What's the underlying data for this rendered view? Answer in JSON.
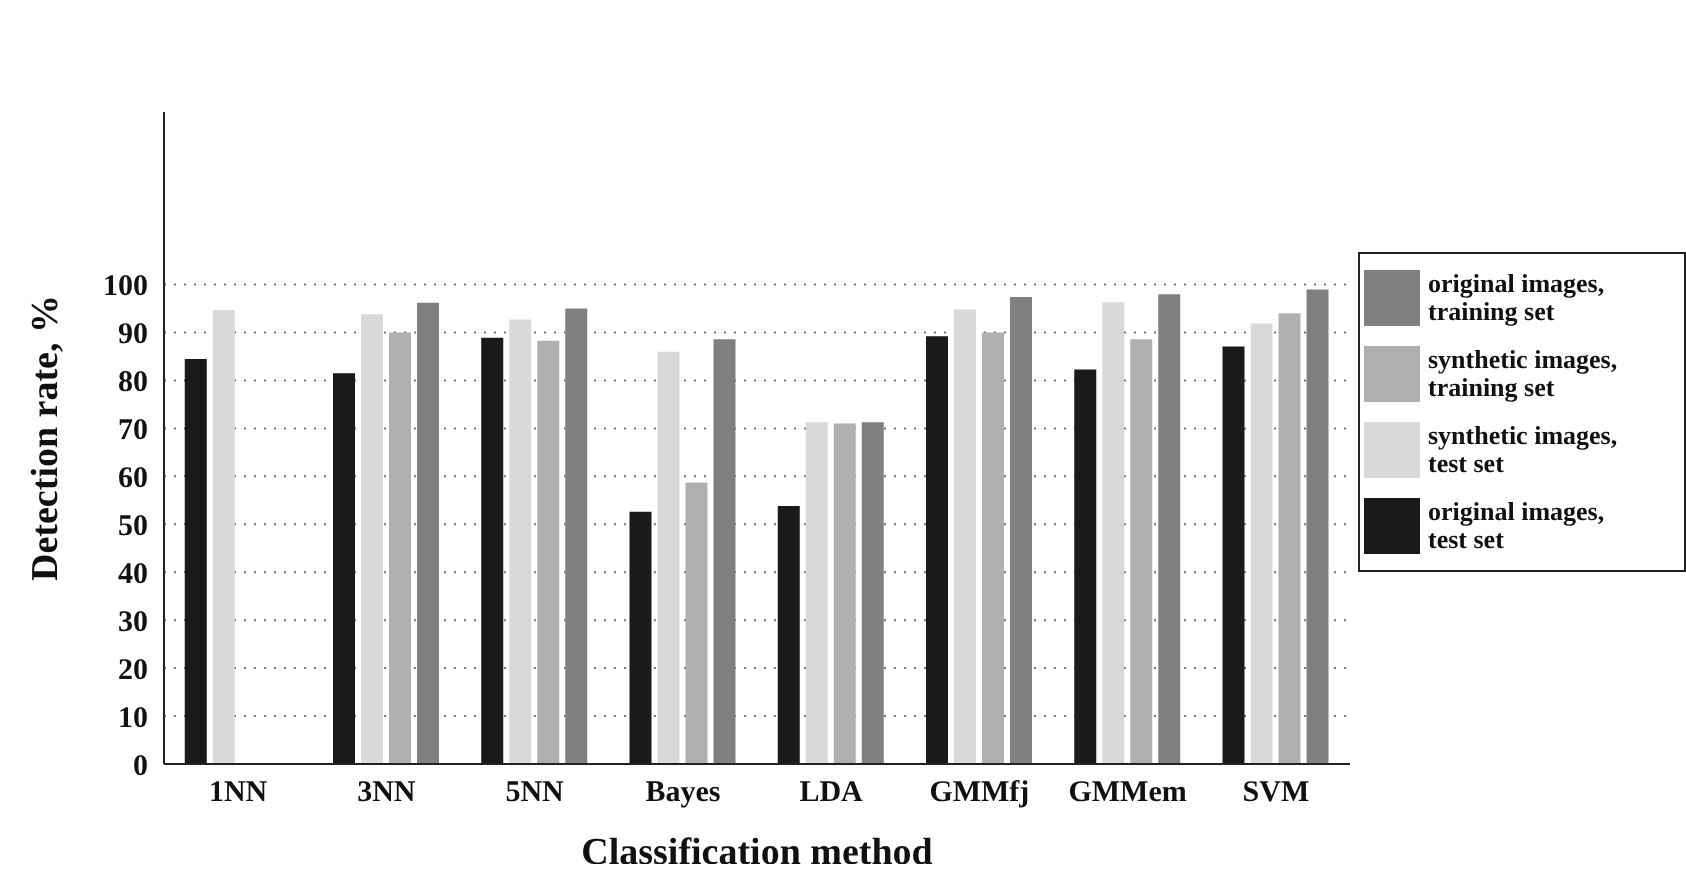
{
  "chart_data": {
    "type": "bar",
    "xlabel": "Classification method",
    "ylabel": "Detection rate, %",
    "categories": [
      "1NN",
      "3NN",
      "5NN",
      "Bayes",
      "LDA",
      "GMMfj",
      "GMMem",
      "SVM"
    ],
    "series": [
      {
        "name": "original images, test set",
        "color": "#1a1a1a",
        "values": [
          84.5,
          81.5,
          88.9,
          52.6,
          53.8,
          89.2,
          82.3,
          87.1
        ]
      },
      {
        "name": "synthetic images, test set",
        "color": "#d9d9d9",
        "values": [
          94.7,
          93.8,
          92.7,
          86,
          71.3,
          94.8,
          96.3,
          91.9
        ]
      },
      {
        "name": "synthetic images, training set",
        "color": "#b0b0b0",
        "values": [
          null,
          90,
          88.3,
          58.7,
          71,
          90,
          88.6,
          94
        ]
      },
      {
        "name": "original images, training set",
        "color": "#808080",
        "values": [
          null,
          96.2,
          95,
          88.6,
          71.3,
          97.4,
          98,
          99
        ]
      }
    ],
    "ylim": [
      0,
      136
    ],
    "yticks": [
      0,
      10,
      20,
      30,
      40,
      50,
      60,
      70,
      80,
      90,
      100
    ],
    "grid": "y",
    "legend": "right"
  }
}
